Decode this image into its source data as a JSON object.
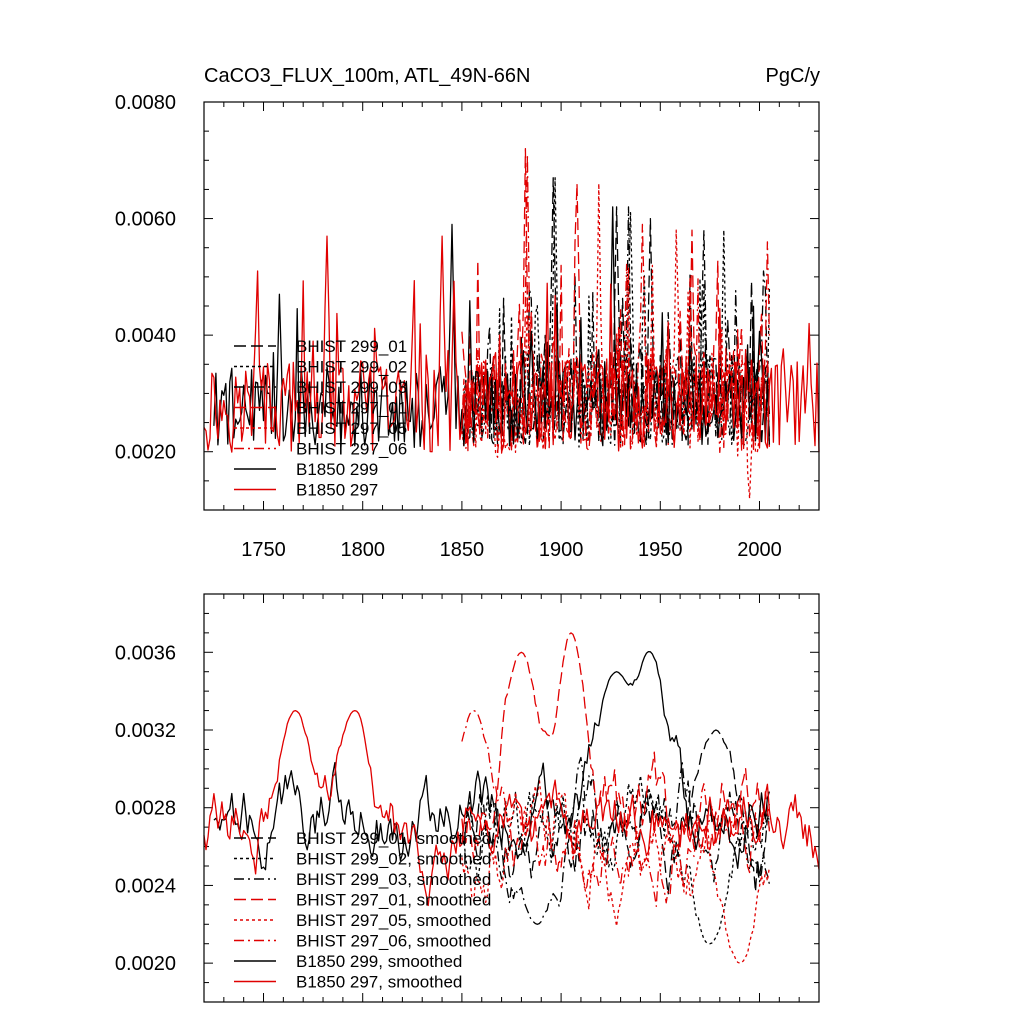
{
  "chart_data": [
    {
      "type": "line",
      "title": "CaCO3_FLUX_100m, ATL_49N-66N",
      "units": "PgC/y",
      "xlim": [
        1720,
        2030
      ],
      "ylim": [
        0.001,
        0.008
      ],
      "yticks": [
        0.002,
        0.004,
        0.006,
        0.008
      ],
      "ytick_labels": [
        "0.0020",
        "0.0040",
        "0.0060",
        "0.0080"
      ],
      "xticks": [
        1750,
        1800,
        1850,
        1900,
        1950,
        2000
      ],
      "xtick_labels": [
        "1750",
        "1800",
        "1850",
        "1900",
        "1950",
        "2000"
      ],
      "series": [
        {
          "name": "BHIST 299_01",
          "color": "#000000",
          "dash": "long-dash",
          "x_start": 1850,
          "x_end": 2005,
          "mean": 0.0028,
          "amp": 0.0008,
          "seed": 11,
          "peaks": [
            [
              1896,
              0.0067
            ],
            [
              1928,
              0.0062
            ],
            [
              1945,
              0.006
            ]
          ]
        },
        {
          "name": "BHIST 299_02",
          "color": "#000000",
          "dash": "dot",
          "x_start": 1850,
          "x_end": 2005,
          "mean": 0.0028,
          "amp": 0.0008,
          "seed": 23,
          "peaks": [
            [
              1897,
              0.0067
            ],
            [
              1935,
              0.0061
            ],
            [
              1982,
              0.0058
            ]
          ]
        },
        {
          "name": "BHIST 299_03",
          "color": "#000000",
          "dash": "dash-dot",
          "x_start": 1850,
          "x_end": 2005,
          "mean": 0.0028,
          "amp": 0.0008,
          "seed": 37,
          "peaks": [
            [
              1934,
              0.0062
            ],
            [
              1972,
              0.0058
            ],
            [
              2002,
              0.0051
            ]
          ]
        },
        {
          "name": "BHIST 297_01",
          "color": "#e00000",
          "dash": "long-dash",
          "x_start": 1850,
          "x_end": 2005,
          "mean": 0.0028,
          "amp": 0.0009,
          "seed": 41,
          "peaks": [
            [
              1882,
              0.0072
            ],
            [
              1908,
              0.0066
            ],
            [
              1966,
              0.0058
            ]
          ]
        },
        {
          "name": "BHIST 297_05",
          "color": "#e00000",
          "dash": "dot",
          "x_start": 1850,
          "x_end": 2005,
          "mean": 0.0027,
          "amp": 0.0009,
          "seed": 53,
          "peaks": [
            [
              1919,
              0.0066
            ],
            [
              1958,
              0.0058
            ],
            [
              1995,
              0.0012
            ]
          ]
        },
        {
          "name": "BHIST 297_06",
          "color": "#e00000",
          "dash": "dash-dot",
          "x_start": 1850,
          "x_end": 2005,
          "mean": 0.0028,
          "amp": 0.0009,
          "seed": 67,
          "peaks": [
            [
              1883,
              0.0071
            ],
            [
              1941,
              0.0059
            ],
            [
              2004,
              0.0056
            ]
          ]
        },
        {
          "name": "B1850 299",
          "color": "#000000",
          "dash": "solid",
          "x_start": 1725,
          "x_end": 2005,
          "mean": 0.0027,
          "amp": 0.0007,
          "seed": 79,
          "peaks": [
            [
              1758,
              0.0047
            ],
            [
              1845,
              0.0059
            ],
            [
              1926,
              0.0062
            ]
          ]
        },
        {
          "name": "B1850 297",
          "color": "#e00000",
          "dash": "solid",
          "x_start": 1720,
          "x_end": 2030,
          "mean": 0.0027,
          "amp": 0.0008,
          "seed": 97,
          "peaks": [
            [
              1747,
              0.0051
            ],
            [
              1782,
              0.0057
            ],
            [
              1840,
              0.0057
            ],
            [
              2025,
              0.0042
            ]
          ]
        }
      ]
    },
    {
      "type": "line",
      "title": "",
      "xlim": [
        1720,
        2030
      ],
      "ylim": [
        0.0018,
        0.0039
      ],
      "yticks": [
        0.002,
        0.0024,
        0.0028,
        0.0032,
        0.0036
      ],
      "ytick_labels": [
        "0.0020",
        "0.0024",
        "0.0028",
        "0.0032",
        "0.0036"
      ],
      "xticks": [
        1750,
        1800,
        1850,
        1900,
        1950,
        2000
      ],
      "series": [
        {
          "name": "BHIST 299_01, smoothed",
          "color": "#000000",
          "dash": "long-dash",
          "x_start": 1850,
          "x_end": 2005,
          "mean": 0.0027,
          "amp": 0.00028,
          "seed": 111,
          "peaks": [
            [
              1978,
              0.0032
            ]
          ]
        },
        {
          "name": "BHIST 299_02, smoothed",
          "color": "#000000",
          "dash": "dot",
          "x_start": 1850,
          "x_end": 2005,
          "mean": 0.0027,
          "amp": 0.00028,
          "seed": 123,
          "peaks": [
            [
              1975,
              0.0021
            ]
          ]
        },
        {
          "name": "BHIST 299_03, smoothed",
          "color": "#000000",
          "dash": "dash-dot",
          "x_start": 1850,
          "x_end": 2005,
          "mean": 0.0027,
          "amp": 0.00028,
          "seed": 137,
          "peaks": [
            [
              1888,
              0.0022
            ]
          ]
        },
        {
          "name": "BHIST 297_01, smoothed",
          "color": "#e00000",
          "dash": "long-dash",
          "x_start": 1850,
          "x_end": 2005,
          "mean": 0.0028,
          "amp": 0.0003,
          "seed": 141,
          "peaks": [
            [
              1880,
              0.0036
            ],
            [
              1905,
              0.0037
            ]
          ]
        },
        {
          "name": "BHIST 297_05, smoothed",
          "color": "#e00000",
          "dash": "dot",
          "x_start": 1850,
          "x_end": 2005,
          "mean": 0.0026,
          "amp": 0.0003,
          "seed": 153,
          "peaks": [
            [
              1990,
              0.002
            ]
          ]
        },
        {
          "name": "BHIST 297_06, smoothed",
          "color": "#e00000",
          "dash": "dash-dot",
          "x_start": 1850,
          "x_end": 2005,
          "mean": 0.0027,
          "amp": 0.00028,
          "seed": 167,
          "peaks": [
            [
              1856,
              0.0033
            ]
          ]
        },
        {
          "name": "B1850 299, smoothed",
          "color": "#000000",
          "dash": "solid",
          "x_start": 1725,
          "x_end": 2005,
          "mean": 0.00278,
          "amp": 0.00025,
          "seed": 179,
          "peaks": [
            [
              1944,
              0.00362
            ],
            [
              1928,
              0.0035
            ]
          ]
        },
        {
          "name": "B1850 297, smoothed",
          "color": "#e00000",
          "dash": "solid",
          "x_start": 1720,
          "x_end": 2030,
          "mean": 0.0027,
          "amp": 0.00025,
          "seed": 197,
          "peaks": [
            [
              1766,
              0.0033
            ],
            [
              1796,
              0.0033
            ]
          ]
        }
      ]
    }
  ]
}
